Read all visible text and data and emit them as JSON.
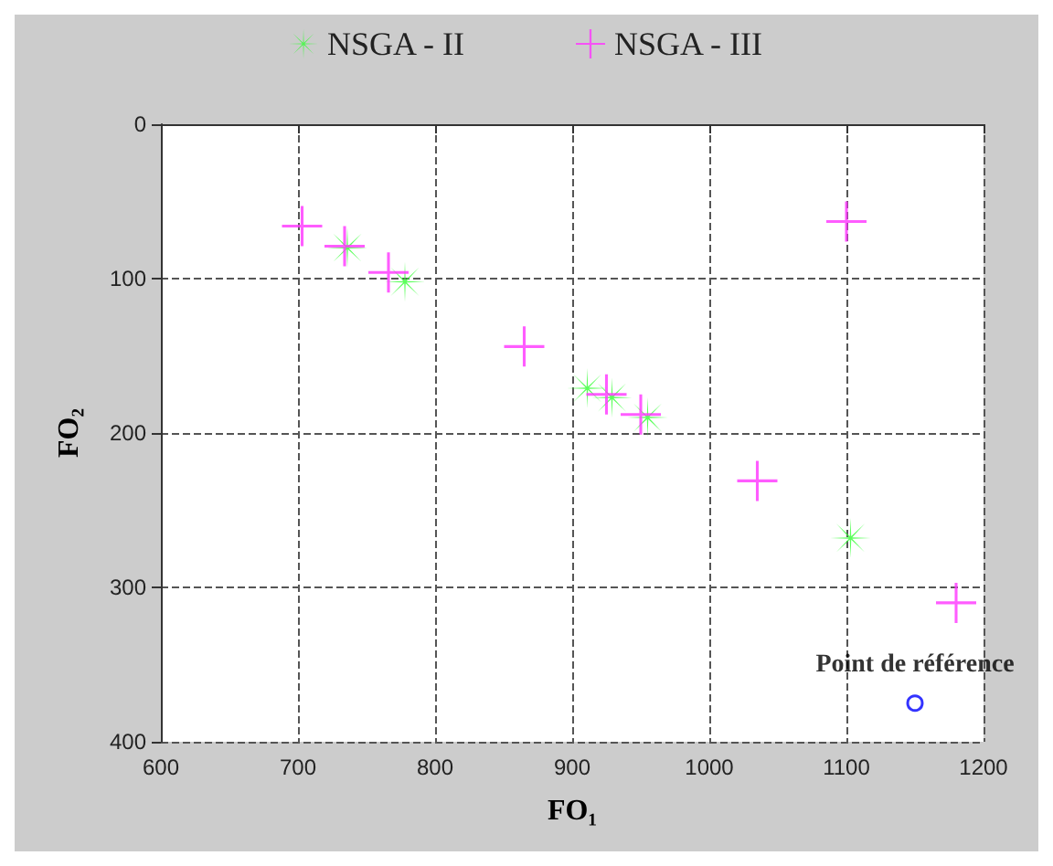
{
  "chart_data": {
    "type": "scatter",
    "xlabel": "FO₁",
    "ylabel": "FO₂",
    "xlim": [
      600,
      1200
    ],
    "xticks": [
      600,
      700,
      800,
      900,
      1000,
      1100,
      1200
    ],
    "ylim": [
      400,
      0
    ],
    "yticks": [
      0,
      100,
      200,
      300,
      400
    ],
    "grid": true,
    "legend": "top",
    "series": [
      {
        "name": "NSGA - II",
        "color": "#33ff33",
        "marker": "star",
        "x": [
          736,
          778,
          911,
          929,
          955,
          1103
        ],
        "values": [
          80,
          102,
          171,
          177,
          190,
          268
        ]
      },
      {
        "name": "NSGA - III",
        "color": "#ff33ff",
        "marker": "cross",
        "x": [
          1100,
          703,
          734,
          766,
          865,
          925,
          950,
          1035,
          1180
        ],
        "values": [
          63,
          66,
          79,
          96,
          144,
          175,
          188,
          231,
          310
        ]
      },
      {
        "color": "#0000ff",
        "marker": "circle",
        "x": [
          1150
        ],
        "values": [
          375
        ]
      }
    ],
    "annotations": [
      {
        "text": "Point de référence",
        "x": 1150,
        "y": 375
      }
    ]
  }
}
